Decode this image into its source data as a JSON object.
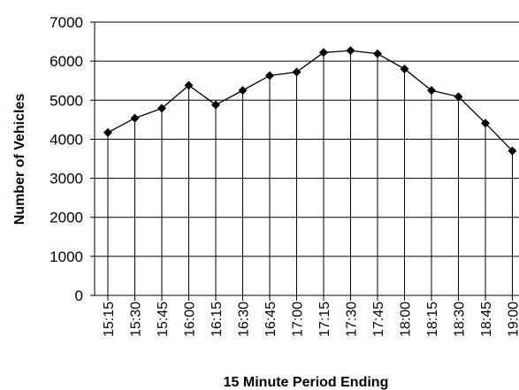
{
  "chart_data": {
    "type": "line",
    "title": "",
    "xlabel": "15 Minute Period Ending",
    "ylabel": "Number of Vehicles",
    "categories": [
      "15:15",
      "15:30",
      "15:45",
      "16:00",
      "16:15",
      "16:30",
      "16:45",
      "17:00",
      "17:15",
      "17:30",
      "17:45",
      "18:00",
      "18:15",
      "18:30",
      "18:45",
      "19:00"
    ],
    "series": [
      {
        "values": [
          4170,
          4540,
          4790,
          5380,
          4880,
          5250,
          5630,
          5720,
          6220,
          6270,
          6190,
          5800,
          5250,
          5090,
          4410,
          3700
        ]
      }
    ],
    "ylim": [
      0,
      7000
    ],
    "yticks": [
      0,
      1000,
      2000,
      3000,
      4000,
      5000,
      6000,
      7000
    ],
    "grid": true,
    "drop_lines": true,
    "marker": "diamond",
    "legend": "none",
    "colors": {
      "line": "#000000",
      "grid": "#000000",
      "background": "#ffffff"
    }
  }
}
